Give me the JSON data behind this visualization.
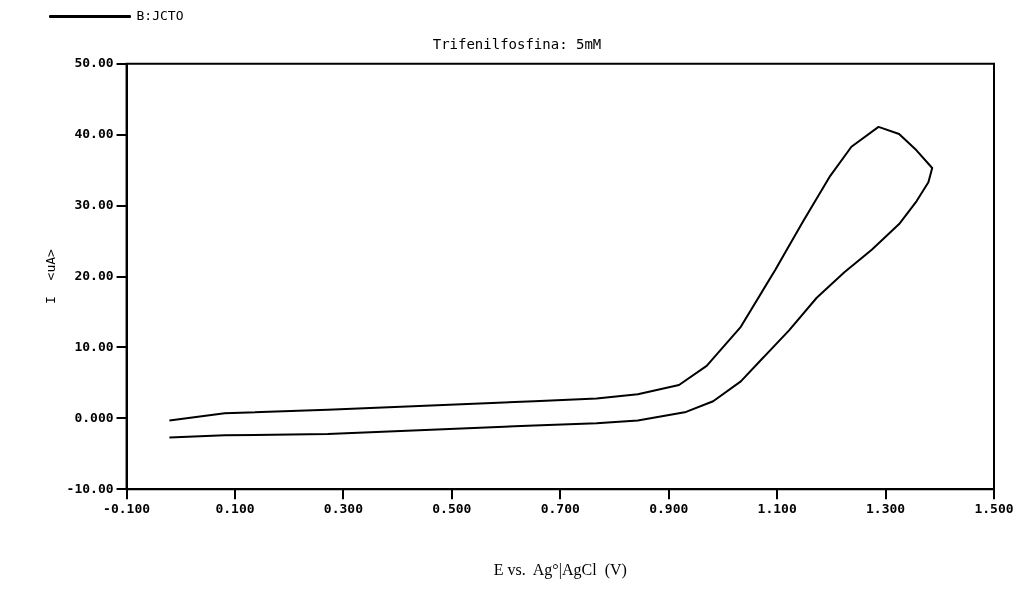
{
  "chart_data": {
    "type": "line",
    "title": "Trifenilfosfina: 5mM",
    "xlabel": "E vs.  Ag°|AgCl  (V)",
    "ylabel": "I  <uA>",
    "series": [
      {
        "name": "B:JCTO",
        "color": "#000000",
        "x": [
          -0.021,
          0.081,
          0.271,
          0.462,
          0.652,
          0.767,
          0.843,
          0.919,
          0.97,
          1.033,
          1.097,
          1.148,
          1.198,
          1.237,
          1.287,
          1.325,
          1.357,
          1.386,
          1.379,
          1.357,
          1.325,
          1.275,
          1.224,
          1.173,
          1.122,
          1.071,
          1.033,
          0.982,
          0.932,
          0.843,
          0.767,
          0.652,
          0.462,
          0.271,
          0.081,
          -0.021
        ],
        "values": [
          -0.3,
          0.7,
          1.2,
          1.8,
          2.4,
          2.8,
          3.4,
          4.7,
          7.4,
          12.9,
          21.0,
          27.8,
          34.2,
          38.3,
          41.1,
          40.1,
          37.8,
          35.3,
          33.3,
          30.6,
          27.4,
          23.8,
          20.6,
          17.0,
          12.4,
          8.3,
          5.2,
          2.4,
          0.9,
          -0.3,
          -0.7,
          -1.0,
          -1.6,
          -2.2,
          -2.4,
          -2.7
        ]
      }
    ],
    "xlim": [
      -0.1,
      1.5
    ],
    "xticks": [
      {
        "value": -0.1,
        "label": "-0.100"
      },
      {
        "value": 0.1,
        "label": "0.100"
      },
      {
        "value": 0.3,
        "label": "0.300"
      },
      {
        "value": 0.5,
        "label": "0.500"
      },
      {
        "value": 0.7,
        "label": "0.700"
      },
      {
        "value": 0.9,
        "label": "0.900"
      },
      {
        "value": 1.1,
        "label": "1.100"
      },
      {
        "value": 1.3,
        "label": "1.300"
      },
      {
        "value": 1.5,
        "label": "1.500"
      }
    ],
    "ylim": [
      -10,
      50
    ],
    "yticks": [
      {
        "value": -10,
        "label": "-10.00"
      },
      {
        "value": 0,
        "label": "0.000"
      },
      {
        "value": 10,
        "label": "10.00"
      },
      {
        "value": 20,
        "label": "20.00"
      },
      {
        "value": 30,
        "label": "30.00"
      },
      {
        "value": 40,
        "label": "40.00"
      },
      {
        "value": 50,
        "label": "50.00"
      }
    ],
    "grid": false,
    "legend": "top left",
    "marker": "none",
    "line_style": "solid"
  }
}
